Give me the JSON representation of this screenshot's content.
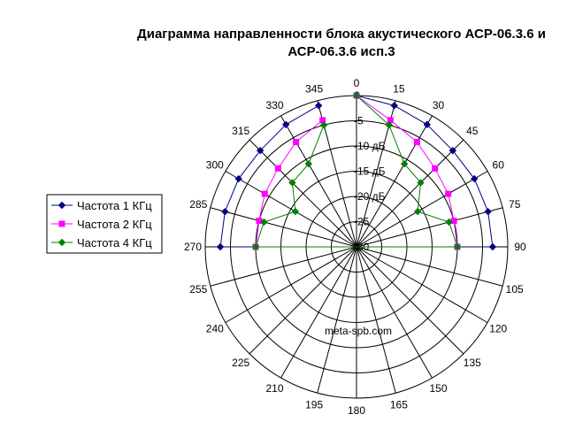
{
  "chart_data": {
    "type": "radar",
    "title_line1": "Диаграмма направленности блока акустического АСР-06.3.6 и",
    "title_line2": "АСР-06.3.6 исп.3",
    "angles": [
      0,
      15,
      30,
      45,
      60,
      75,
      90,
      105,
      120,
      135,
      150,
      165,
      180,
      195,
      210,
      225,
      240,
      255,
      270,
      285,
      300,
      315,
      330,
      345
    ],
    "radial_ticks": [
      "0",
      "-5",
      "-10 дБ",
      "-15 дБ",
      "-20 дБ",
      "-25",
      "-30"
    ],
    "radial_values": [
      0,
      -5,
      -10,
      -15,
      -20,
      -25,
      -30
    ],
    "rlim": [
      -30,
      0
    ],
    "legend_position": "left",
    "series": [
      {
        "name": "Частота 1 КГц",
        "color": "#000080",
        "marker": "diamond",
        "angles": [
          0,
          15,
          30,
          45,
          60,
          75,
          90,
          270,
          285,
          300,
          315,
          330,
          345
        ],
        "values": [
          0,
          -1,
          -2,
          -3,
          -3,
          -3,
          -3,
          -3,
          -3,
          -3,
          -3,
          -2,
          -1
        ]
      },
      {
        "name": "Частота 2 КГц",
        "color": "#ff00ff",
        "marker": "square",
        "angles": [
          0,
          15,
          30,
          45,
          60,
          75,
          90,
          270,
          285,
          300,
          315,
          330,
          345
        ],
        "values": [
          0,
          -4,
          -6,
          -8,
          -9,
          -10,
          -10,
          -10,
          -10,
          -9,
          -8,
          -6,
          -4
        ]
      },
      {
        "name": "Частота 4 КГц",
        "color": "#008000",
        "marker": "diamond",
        "angles": [
          0,
          15,
          30,
          45,
          60,
          75,
          90,
          270,
          285,
          300,
          315,
          330,
          345
        ],
        "values": [
          0,
          -5,
          -11,
          -12,
          -16,
          -11,
          -10,
          -10,
          -11,
          -16,
          -12,
          -11,
          -5
        ]
      }
    ],
    "annotation": "meta-spb.com"
  }
}
